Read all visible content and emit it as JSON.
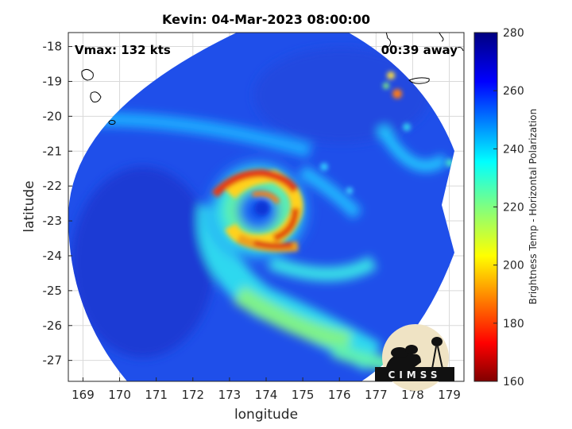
{
  "title": "Kevin: 04-Mar-2023 08:00:00",
  "annotations": {
    "vmax": "Vmax: 132 kts",
    "away": "00:39 away"
  },
  "x_axis": {
    "label": "longitude",
    "range": [
      168.6,
      179.4
    ],
    "ticks": [
      "169",
      "170",
      "171",
      "172",
      "173",
      "174",
      "175",
      "176",
      "177",
      "178",
      "179"
    ]
  },
  "y_axis": {
    "label": "latitude",
    "range": [
      -27.6,
      -17.6
    ],
    "ticks": [
      "-18",
      "-19",
      "-20",
      "-21",
      "-22",
      "-23",
      "-24",
      "-25",
      "-26",
      "-27"
    ]
  },
  "colorbar": {
    "label": "Brightness Temp - Horizontal Polarization",
    "range": [
      160,
      280
    ],
    "ticks": [
      "160",
      "180",
      "200",
      "220",
      "240",
      "260",
      "280"
    ],
    "colormap": "jet"
  },
  "storm": {
    "eye_lon": 173.9,
    "eye_lat": -22.6
  },
  "logo": {
    "text": "CIMSS"
  },
  "grid": true
}
